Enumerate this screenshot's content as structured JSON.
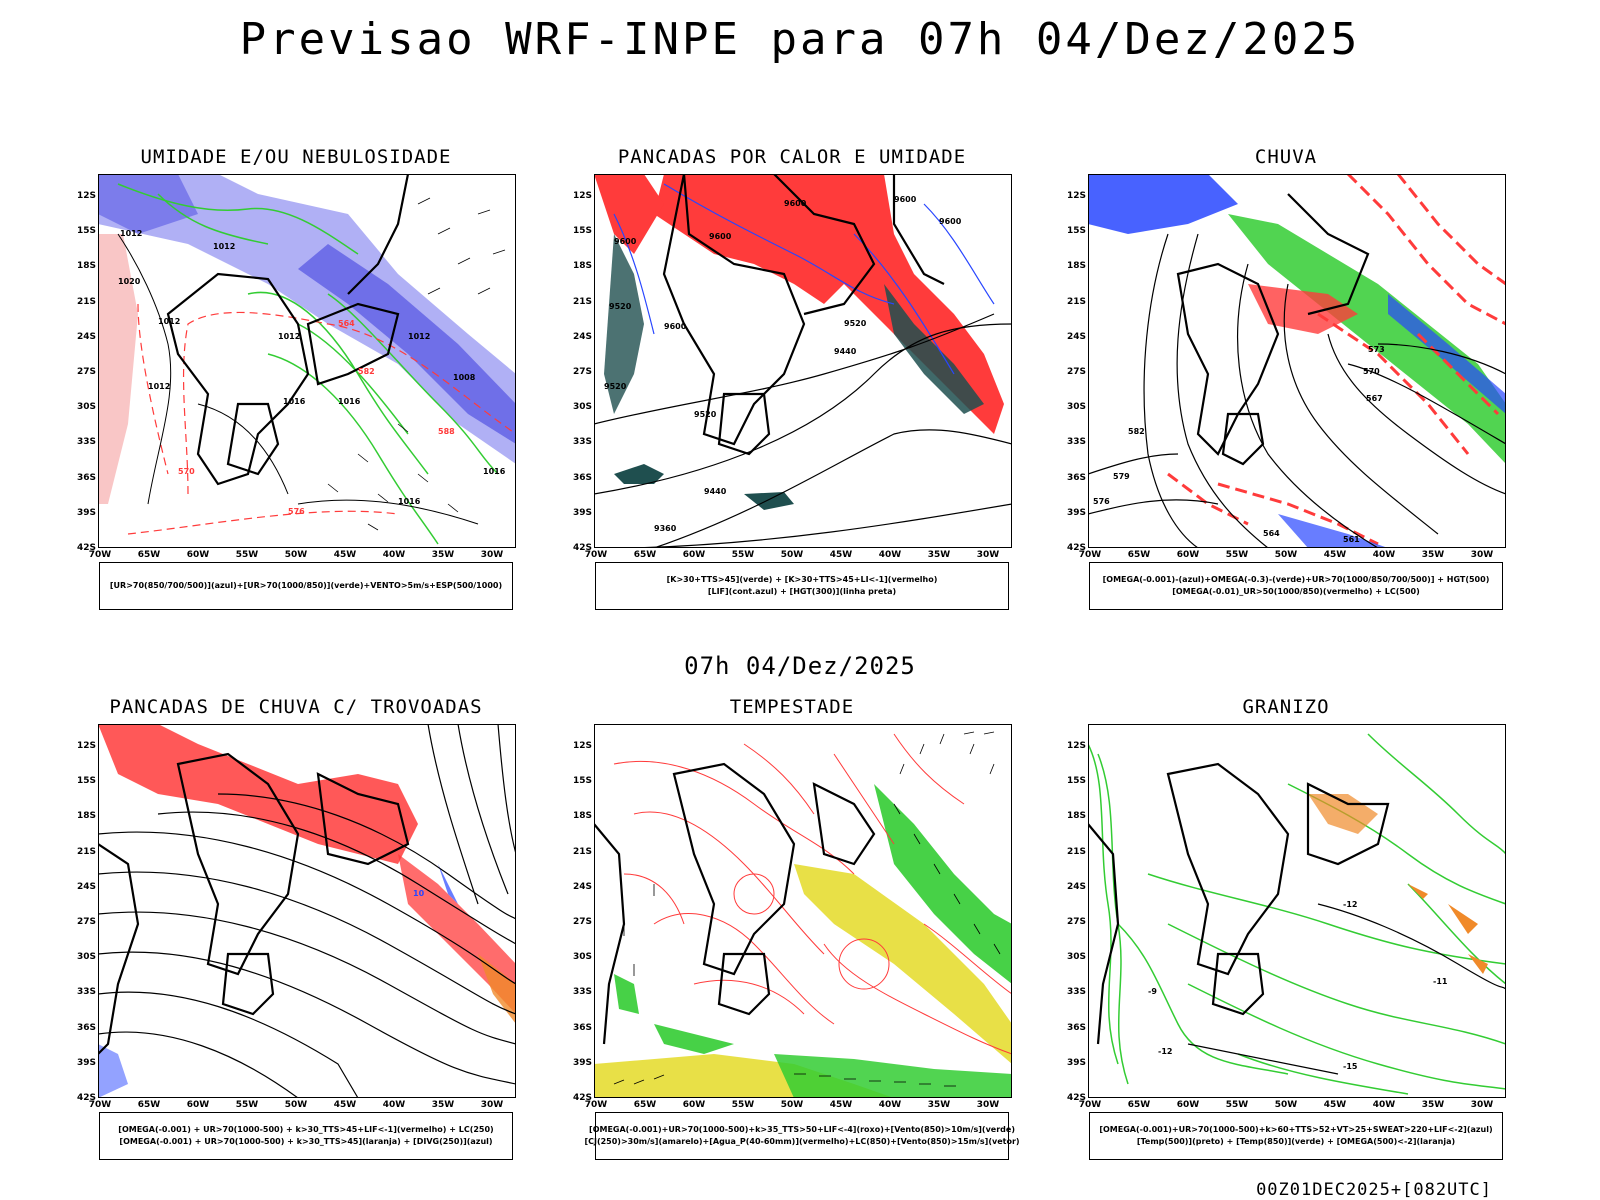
{
  "main_title": "Previsao WRF-INPE  para 07h 04/Dez/2025",
  "mid_title": "07h 04/Dez/2025",
  "footer": "00Z01DEC2025+[082UTC]",
  "axes": {
    "lat": [
      "12S",
      "15S",
      "18S",
      "21S",
      "24S",
      "27S",
      "30S",
      "33S",
      "36S",
      "39S",
      "42S"
    ],
    "lon": [
      "70W",
      "65W",
      "60W",
      "55W",
      "50W",
      "45W",
      "40W",
      "35W",
      "30W"
    ]
  },
  "colors": {
    "blue_fill": "#6f6fe8",
    "light_blue_fill": "#b0b0f5",
    "green": "#33cc33",
    "red": "#ff3b3b",
    "dark_teal": "#1f4f4f",
    "yellow": "#e6dd33",
    "orange": "#f08a2a",
    "blue": "#2846ff"
  },
  "panels": [
    {
      "title": "UMIDADE E/OU NEBULOSIDADE",
      "legend": [
        "[UR>70(850/700/500)](azul)+[UR>70(1000/850)](verde)+VENTO>5m/s+ESP(500/1000)"
      ],
      "labels": [
        "1012",
        "1008",
        "1016",
        "1020",
        "570",
        "576",
        "582",
        "564",
        "588"
      ]
    },
    {
      "title": "PANCADAS POR CALOR E UMIDADE",
      "legend": [
        "[K>30+TTS>45](verde) + [K>30+TTS>45+LI<-1](vermelho)",
        "[LIF](cont.azul) + [HGT(300)](linha preta)"
      ],
      "labels": [
        "9600",
        "9520",
        "9440",
        "9360"
      ]
    },
    {
      "title": "CHUVA",
      "legend": [
        "[OMEGA(-0.001)-(azul)+OMEGA(-0.3)-(verde)+UR>70(1000/850/700/500)] + HGT(500)",
        "[OMEGA(-0.01)_UR>50(1000/850)(vermelho) + LC(500)"
      ],
      "labels": [
        "573",
        "570",
        "567",
        "576",
        "579",
        "582",
        "561",
        "564"
      ]
    },
    {
      "title": "PANCADAS DE CHUVA C/ TROVOADAS",
      "legend": [
        "[OMEGA(-0.001) + UR>70(1000-500) + k>30_TTS>45+LIF<-1](vermelho) + LC(250)",
        "[OMEGA(-0.001) + UR>70(1000-500) + k>30_TTS>45](laranja) + [DIVG(250)](azul)"
      ],
      "labels": [
        "10"
      ]
    },
    {
      "title": "TEMPESTADE",
      "legend": [
        "[OMEGA(-0.001)+UR>70(1000-500)+k>35_TTS>50+LIF<-4](roxo)+[Vento(850)>10m/s](verde)",
        "[CJ(250)>30m/s](amarelo)+[Agua_P(40-60mm)](vermelho)+LC(850)+[Vento(850)>15m/s](vetor)"
      ],
      "labels": []
    },
    {
      "title": "GRANIZO",
      "legend": [
        "[OMEGA(-0.001)+UR>70(1000-500)+k>60+TTS>52+VT>25+SWEAT>220+LIF<-2](azul)",
        "[Temp(500)](preto) + [Temp(850)](verde) + [OMEGA(500)<-2](laranja)"
      ],
      "labels": [
        "-12",
        "-15",
        "-11",
        "-9"
      ]
    }
  ]
}
